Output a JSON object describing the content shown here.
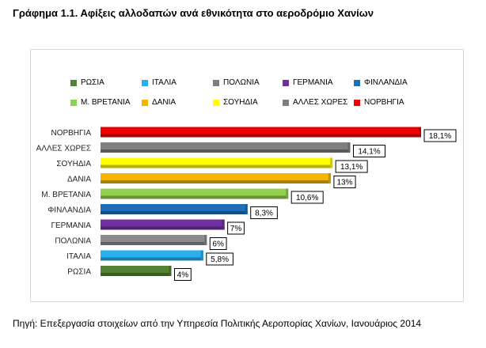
{
  "title": "Γράφημα 1.1. Αφίξεις αλλοδαπών ανά εθνικότητα στο αεροδρόμιο Χανίων",
  "source": "Πηγή: Επεξεργασία στοιχείων από την Υπηρεσία Πολιτικής Αεροπορίας Χανίων, Ιανουάριος 2014",
  "chart_data": {
    "type": "bar",
    "orientation": "horizontal",
    "xlim": [
      0,
      18.1
    ],
    "grid": false,
    "legend_position": "top",
    "categories": [
      "ΝΟΡΒΗΓΙΑ",
      "ΑΛΛΕΣ ΧΩΡΕΣ",
      "ΣΟΥΗΔΙΑ",
      "ΔΑΝΙΑ",
      "Μ. ΒΡΕΤΑΝΙΑ",
      "ΦΙΝΛΑΝΔΙΑ",
      "ΓΕΡΜΑΝΙΑ",
      "ΠΟΛΩΝΙΑ",
      "ΙΤΑΛΙΑ",
      "ΡΩΣΙΑ"
    ],
    "values": [
      18.1,
      14.1,
      13.1,
      13,
      10.6,
      8.3,
      7,
      6,
      5.8,
      4
    ],
    "value_labels": [
      "18,1%",
      "14,1%",
      "13,1%",
      "13%",
      "10,6%",
      "8,3%",
      "7%",
      "6%",
      "5,8%",
      "4%"
    ],
    "colors": [
      "#ee0000",
      "#7f7f7f",
      "#ffff00",
      "#f5b400",
      "#92d050",
      "#1f6fb8",
      "#7030a0",
      "#8c8c8c",
      "#2ab0f0",
      "#548235"
    ],
    "legend": [
      {
        "name": "ΡΩΣΙΑ",
        "color": "#548235"
      },
      {
        "name": "ΙΤΑΛΙΑ",
        "color": "#2ab0f0"
      },
      {
        "name": "ΠΟΛΩΝΙΑ",
        "color": "#7f7f7f"
      },
      {
        "name": "ΓΕΡΜΑΝΙΑ",
        "color": "#7030a0"
      },
      {
        "name": "ΦΙΝΛΑΝΔΙΑ",
        "color": "#1f6fb8"
      },
      {
        "name": "Μ. ΒΡΕΤΑΝΙΑ",
        "color": "#92d050"
      },
      {
        "name": "ΔΑΝΙΑ",
        "color": "#f5b400"
      },
      {
        "name": "ΣΟΥΗΔΙΑ",
        "color": "#ffff00"
      },
      {
        "name": "ΑΛΛΕΣ ΧΩΡΕΣ",
        "color": "#7f7f7f"
      },
      {
        "name": "ΝΟΡΒΗΓΙΑ",
        "color": "#ee0000"
      }
    ]
  }
}
